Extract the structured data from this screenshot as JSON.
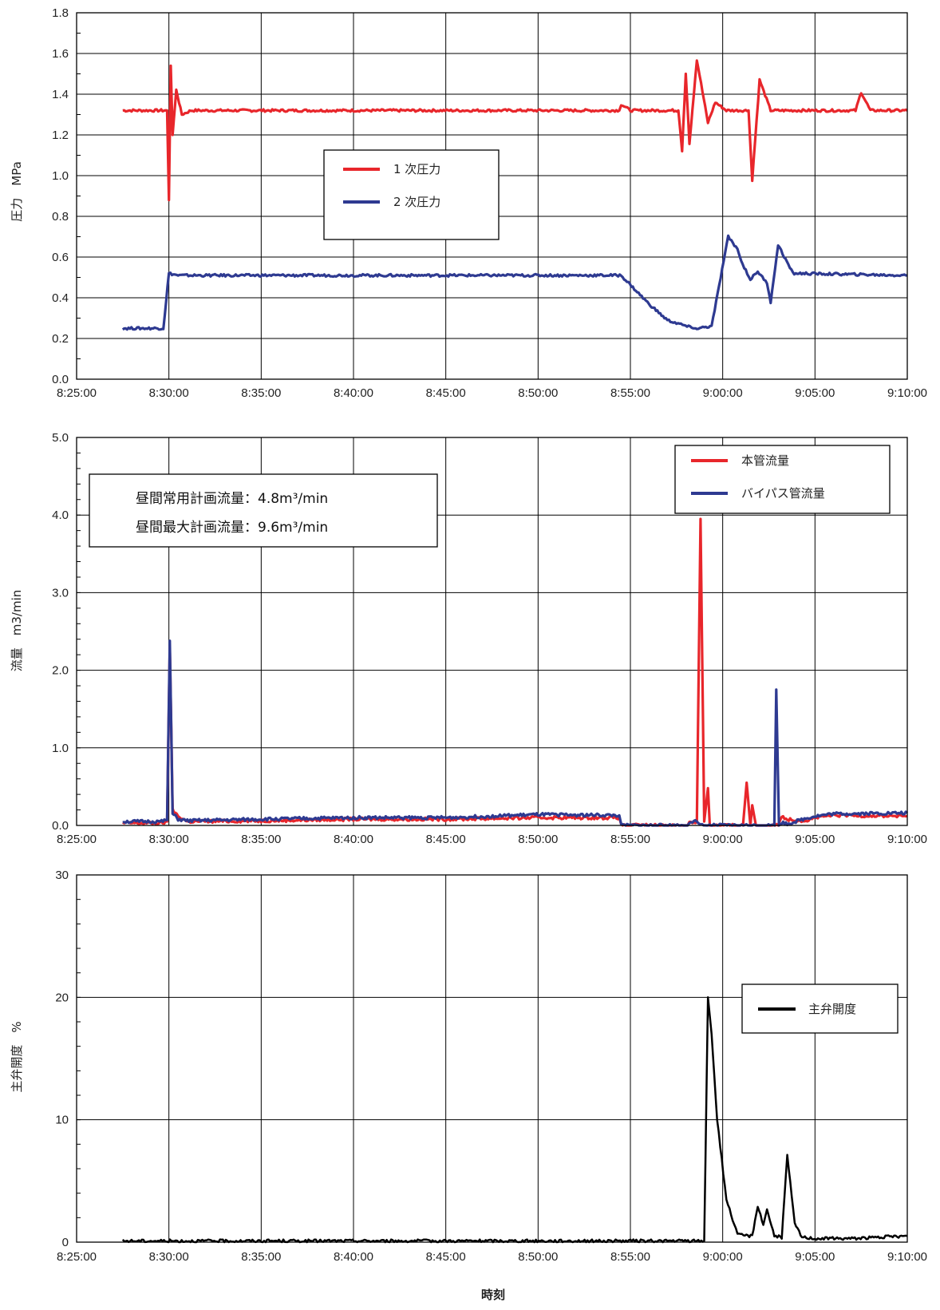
{
  "chart_data": [
    {
      "type": "line",
      "ylabel": "圧力　MPa",
      "ylim": [
        0,
        1.8
      ],
      "y_ticks": [
        "0.0",
        "0.2",
        "0.4",
        "0.6",
        "0.8",
        "1.0",
        "1.2",
        "1.4",
        "1.6",
        "1.8"
      ],
      "x_ticks": [
        "8:25:00",
        "8:30:00",
        "8:35:00",
        "8:40:00",
        "8:45:00",
        "8:50:00",
        "8:55:00",
        "9:00:00",
        "9:05:00",
        "9:10:00"
      ],
      "xlim_minutes": [
        0,
        45
      ],
      "grid": true,
      "legend_position": "center-left",
      "series": [
        {
          "name": "1 次圧力",
          "color": "#e8262b",
          "x": [
            2.5,
            4.9,
            5.0,
            5.1,
            5.2,
            5.4,
            5.7,
            6.2,
            29.4,
            29.5,
            30.0,
            32.6,
            32.8,
            33.0,
            33.2,
            33.6,
            34.2,
            34.6,
            35.2,
            36.4,
            36.6,
            37.0,
            37.6,
            42.2,
            42.5,
            43.0,
            45.0
          ],
          "y": [
            1.32,
            1.32,
            0.88,
            1.54,
            1.2,
            1.42,
            1.3,
            1.32,
            1.32,
            1.35,
            1.32,
            1.32,
            1.12,
            1.5,
            1.16,
            1.57,
            1.26,
            1.36,
            1.32,
            1.32,
            0.98,
            1.47,
            1.32,
            1.32,
            1.41,
            1.32,
            1.32
          ]
        },
        {
          "name": "2 次圧力",
          "color": "#2e3a91",
          "x": [
            2.5,
            4.7,
            5.0,
            5.5,
            29.5,
            31.0,
            32.0,
            33.4,
            33.6,
            34.4,
            35.3,
            35.8,
            36.0,
            36.5,
            36.9,
            37.4,
            37.6,
            38.0,
            38.8,
            45.0
          ],
          "y": [
            0.25,
            0.25,
            0.52,
            0.51,
            0.51,
            0.37,
            0.29,
            0.25,
            0.25,
            0.26,
            0.7,
            0.64,
            0.58,
            0.49,
            0.53,
            0.47,
            0.38,
            0.66,
            0.52,
            0.51
          ]
        }
      ]
    },
    {
      "type": "line",
      "ylabel": "流量　m3/min",
      "ylim": [
        0,
        5
      ],
      "y_ticks": [
        "0.0",
        "1.0",
        "2.0",
        "3.0",
        "4.0",
        "5.0"
      ],
      "x_ticks": [
        "8:25:00",
        "8:30:00",
        "8:35:00",
        "8:40:00",
        "8:45:00",
        "8:50:00",
        "8:55:00",
        "9:00:00",
        "9:05:00",
        "9:10:00"
      ],
      "xlim_minutes": [
        0,
        45
      ],
      "grid": true,
      "legend_position": "top-right",
      "annotations": [
        "昼間常用計画流量：4.8m³/min",
        "昼間最大計画流量：9.6m³/min"
      ],
      "series": [
        {
          "name": "本管流量",
          "color": "#e8262b",
          "x": [
            2.5,
            4.6,
            4.9,
            5.05,
            5.2,
            5.5,
            6.0,
            10.0,
            15.0,
            20.0,
            25.0,
            29.4,
            29.5,
            33.1,
            33.2,
            33.6,
            33.8,
            34.0,
            34.2,
            34.3,
            34.5,
            36.1,
            36.3,
            36.5,
            36.6,
            36.8,
            37.0,
            38.0,
            38.2,
            38.5,
            39.5,
            40.0,
            41.0,
            45.0
          ],
          "y": [
            0.03,
            0.03,
            0.05,
            2.3,
            0.2,
            0.12,
            0.05,
            0.06,
            0.08,
            0.08,
            0.1,
            0.1,
            0.0,
            0.0,
            0.04,
            0.04,
            3.95,
            0.05,
            0.48,
            0.0,
            0.0,
            0.0,
            0.55,
            0.0,
            0.26,
            0.0,
            0.0,
            0.0,
            0.12,
            0.08,
            0.06,
            0.1,
            0.13,
            0.12
          ]
        },
        {
          "name": "バイパス管流量",
          "color": "#2e3a91",
          "x": [
            2.5,
            4.6,
            4.9,
            5.05,
            5.2,
            5.5,
            6.0,
            10.0,
            15.0,
            20.0,
            25.0,
            29.4,
            29.5,
            33.1,
            33.2,
            33.6,
            33.8,
            37.8,
            37.9,
            38.05,
            38.2,
            38.5,
            39.5,
            40.0,
            41.0,
            45.0
          ],
          "y": [
            0.05,
            0.05,
            0.07,
            2.38,
            0.15,
            0.08,
            0.06,
            0.08,
            0.1,
            0.1,
            0.14,
            0.13,
            0.0,
            0.0,
            0.05,
            0.05,
            0.0,
            0.0,
            1.75,
            0.0,
            0.04,
            0.02,
            0.09,
            0.12,
            0.15,
            0.16
          ]
        }
      ]
    },
    {
      "type": "line",
      "ylabel": "主弁開度　%",
      "xlabel": "時刻",
      "ylim": [
        0,
        30
      ],
      "y_ticks": [
        "0",
        "10",
        "20",
        "30"
      ],
      "x_ticks": [
        "8:25:00",
        "8:30:00",
        "8:35:00",
        "8:40:00",
        "8:45:00",
        "8:50:00",
        "8:55:00",
        "9:00:00",
        "9:05:00",
        "9:10:00"
      ],
      "xlim_minutes": [
        0,
        45
      ],
      "grid": true,
      "legend_position": "right",
      "series": [
        {
          "name": "主弁開度",
          "color": "#000000",
          "x": [
            2.5,
            10.0,
            20.0,
            30.0,
            34.0,
            34.2,
            34.4,
            34.7,
            35.2,
            35.8,
            36.6,
            36.9,
            37.2,
            37.4,
            37.8,
            38.2,
            38.5,
            38.9,
            39.3,
            40.0,
            42.0,
            45.0
          ],
          "y": [
            0.1,
            0.1,
            0.1,
            0.1,
            0.1,
            20.0,
            17.0,
            10.0,
            3.5,
            0.6,
            0.5,
            3.0,
            1.4,
            2.7,
            0.5,
            0.4,
            7.1,
            1.5,
            0.4,
            0.3,
            0.3,
            0.5
          ]
        }
      ]
    }
  ]
}
